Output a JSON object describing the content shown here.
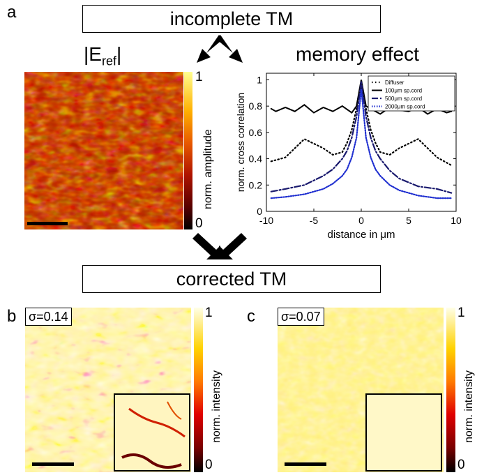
{
  "labels": {
    "panel_a": "a",
    "panel_b": "b",
    "panel_c": "c",
    "top_box": "incomplete TM",
    "bottom_box": "corrected TM",
    "eref_pre": "|E",
    "eref_sub": "ref",
    "eref_post": "|",
    "memory_title": "memory effect"
  },
  "colorbars": {
    "amplitude": {
      "label": "norm. amplitude",
      "max": "1",
      "min": "0"
    },
    "intensity_b": {
      "label": "norm. intensity",
      "max": "1",
      "min": "0"
    },
    "intensity_c": {
      "label": "norm. intensity",
      "max": "1",
      "min": "0"
    }
  },
  "sigma": {
    "b": "σ=0.14",
    "c": "σ=0.07"
  },
  "colors": {
    "diffuser": "#000000",
    "cord100": "#000000",
    "cord500": "#1a1a6e",
    "cord2000": "#1f2fd0"
  },
  "chart_data": {
    "type": "line",
    "xlabel": "distance in μm",
    "ylabel": "norm. cross correlation",
    "xlim": [
      -10,
      10
    ],
    "ylim": [
      0,
      1.05
    ],
    "xticks": [
      "-10",
      "-5",
      "0",
      "5",
      "10"
    ],
    "yticks": [
      "0",
      "0.2",
      "0.4",
      "0.6",
      "0.8",
      "1"
    ],
    "legend_position": "top-right",
    "series": [
      {
        "name": "Diffuser",
        "x": [
          -9.5,
          -8,
          -6,
          -4,
          -3,
          -2,
          -1.5,
          -1,
          -0.5,
          0,
          0.5,
          1,
          1.5,
          2,
          3,
          4,
          6,
          8,
          9.5
        ],
        "y": [
          0.38,
          0.41,
          0.55,
          0.48,
          0.43,
          0.45,
          0.52,
          0.62,
          0.78,
          0.96,
          0.78,
          0.62,
          0.52,
          0.45,
          0.43,
          0.48,
          0.55,
          0.41,
          0.35
        ]
      },
      {
        "name": "100μm sp.cord",
        "x": [
          -9.5,
          -9,
          -8,
          -7,
          -6,
          -5,
          -4,
          -3,
          -2,
          -1,
          -0.5,
          0,
          0.5,
          1,
          2,
          3,
          4,
          5,
          6,
          7,
          8,
          9,
          9.5
        ],
        "y": [
          0.78,
          0.76,
          0.79,
          0.76,
          0.81,
          0.75,
          0.79,
          0.76,
          0.8,
          0.75,
          0.8,
          1.0,
          0.8,
          0.78,
          0.74,
          0.79,
          0.77,
          0.76,
          0.79,
          0.74,
          0.78,
          0.75,
          0.76
        ]
      },
      {
        "name": "500μm sp.cord",
        "x": [
          -9.5,
          -8,
          -6,
          -4,
          -3,
          -2,
          -1.5,
          -1,
          -0.5,
          0,
          0.5,
          1,
          1.5,
          2,
          3,
          4,
          6,
          8,
          9.5
        ],
        "y": [
          0.15,
          0.17,
          0.2,
          0.27,
          0.32,
          0.4,
          0.46,
          0.56,
          0.72,
          0.99,
          0.72,
          0.56,
          0.46,
          0.4,
          0.31,
          0.25,
          0.19,
          0.17,
          0.14
        ]
      },
      {
        "name": "2000μm sp.cord",
        "x": [
          -9.5,
          -8,
          -6,
          -4,
          -3,
          -2,
          -1.5,
          -1,
          -0.5,
          0,
          0.5,
          1,
          1.5,
          2,
          3,
          4,
          6,
          8,
          9.5
        ],
        "y": [
          0.1,
          0.11,
          0.13,
          0.17,
          0.21,
          0.27,
          0.32,
          0.41,
          0.56,
          0.93,
          0.56,
          0.41,
          0.32,
          0.27,
          0.2,
          0.16,
          0.12,
          0.1,
          0.1
        ]
      }
    ]
  }
}
